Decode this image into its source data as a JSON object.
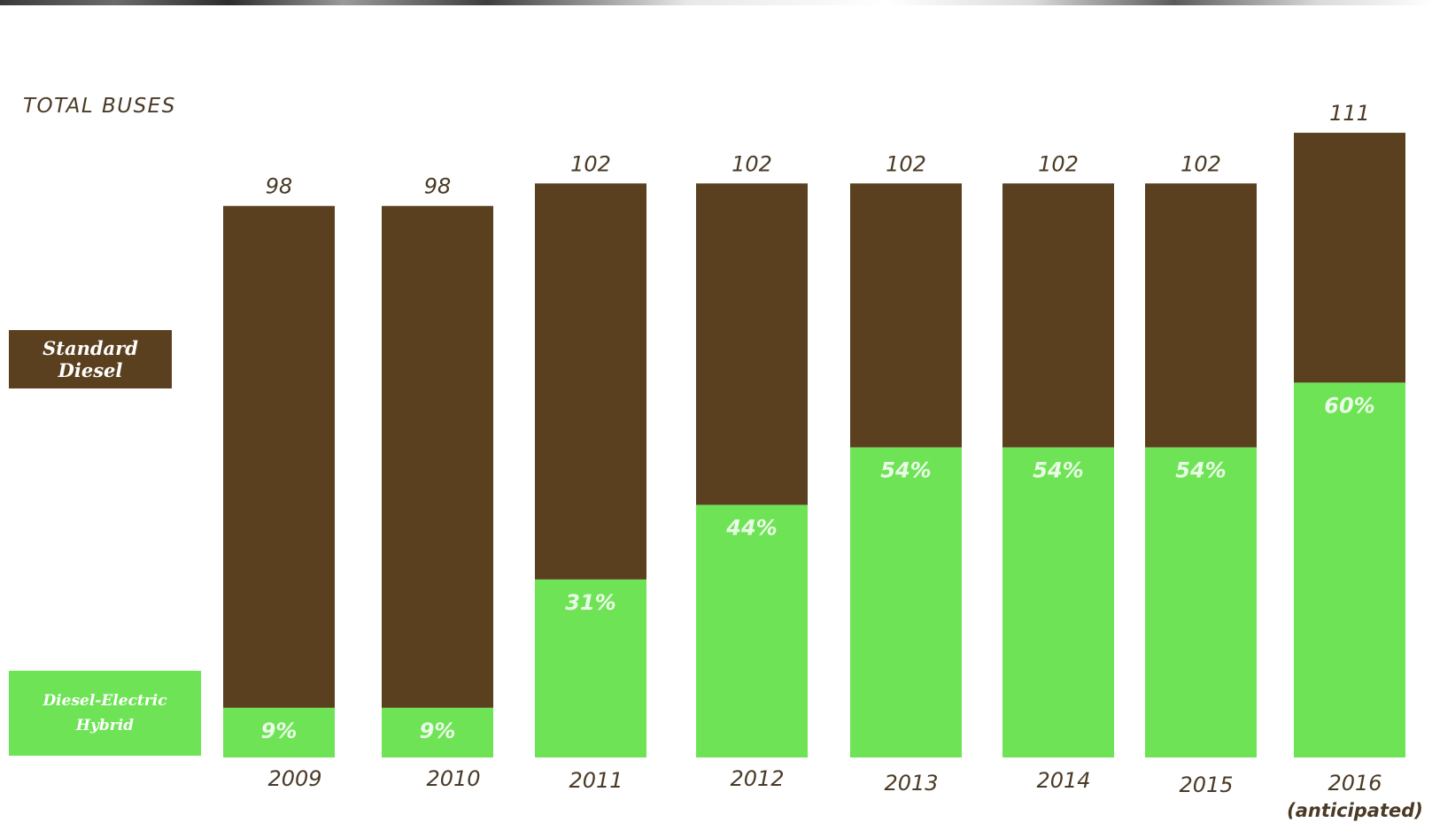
{
  "chart_data": {
    "type": "bar",
    "stacked": true,
    "categories": [
      "2009",
      "2010",
      "2011",
      "2012",
      "2013",
      "2014",
      "2015",
      "2016\n(anticipated)"
    ],
    "totals_label": "TOTAL BUSES",
    "totals": [
      98,
      98,
      102,
      102,
      102,
      102,
      102,
      111
    ],
    "hybrid_percent_labels": [
      "9%",
      "9%",
      "31%",
      "44%",
      "54%",
      "54%",
      "54%",
      "60%"
    ],
    "series": [
      {
        "name": "Diesel-Electric Hybrid",
        "share": [
          0.09,
          0.09,
          0.31,
          0.44,
          0.54,
          0.54,
          0.54,
          0.6
        ]
      },
      {
        "name": "Standard Diesel",
        "share": [
          0.91,
          0.91,
          0.69,
          0.56,
          0.46,
          0.46,
          0.46,
          0.4
        ]
      }
    ],
    "colors": {
      "standard_diesel": "#5a401e",
      "hybrid": "#6fe356",
      "text": "#4a3a26"
    },
    "legend": [
      {
        "label": "Standard Diesel",
        "color": "#5a401e"
      },
      {
        "label": "Diesel-Electric\nHybrid",
        "color": "#6fe356"
      }
    ],
    "grid": false
  }
}
